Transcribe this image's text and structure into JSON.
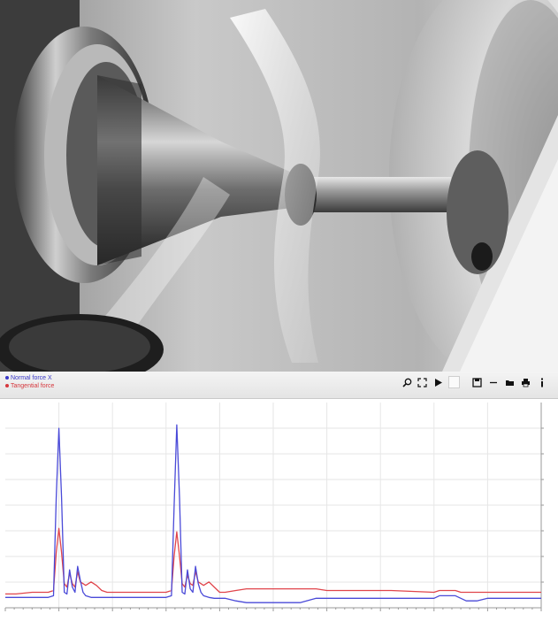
{
  "legend": {
    "normal_force": "Normal force X",
    "tangential_force": "Tangential force"
  },
  "toolbar": {
    "tools": [
      "zoom-icon",
      "fit-icon",
      "play-icon",
      "blank-icon",
      "save-icon",
      "minus-icon",
      "open-folder-icon",
      "print-icon",
      "info-icon"
    ]
  },
  "colors": {
    "normal_force": "#4a4ad8",
    "tangential_force": "#e0454b",
    "toolbar_bg": "#eaeaea",
    "grid": "#e6e6e6"
  },
  "chart_data": {
    "type": "line",
    "title": "",
    "grid": true,
    "legend_position": "top-left",
    "x": [
      0,
      0.02,
      0.05,
      0.08,
      0.09,
      0.095,
      0.1,
      0.105,
      0.11,
      0.115,
      0.12,
      0.125,
      0.13,
      0.135,
      0.14,
      0.145,
      0.15,
      0.16,
      0.17,
      0.18,
      0.19,
      0.2,
      0.25,
      0.3,
      0.31,
      0.315,
      0.32,
      0.325,
      0.33,
      0.335,
      0.34,
      0.345,
      0.35,
      0.355,
      0.36,
      0.365,
      0.37,
      0.38,
      0.39,
      0.4,
      0.41,
      0.43,
      0.45,
      0.47,
      0.5,
      0.55,
      0.58,
      0.6,
      0.65,
      0.7,
      0.72,
      0.8,
      0.81,
      0.84,
      0.85,
      0.86,
      0.88,
      0.9,
      0.95,
      1.0
    ],
    "series": [
      {
        "name": "Normal force X",
        "values": [
          2,
          2,
          2,
          2,
          3,
          60,
          100,
          60,
          5,
          4,
          18,
          8,
          5,
          20,
          12,
          5,
          3,
          2,
          2,
          2,
          2,
          2,
          2,
          2,
          3,
          55,
          102,
          60,
          5,
          4,
          18,
          7,
          5,
          20,
          10,
          5,
          3,
          2,
          1.5,
          1.5,
          1.5,
          0,
          -1,
          -1,
          -1,
          -1,
          1.5,
          1.5,
          1.5,
          1.5,
          1.5,
          1.5,
          3,
          3,
          1.5,
          0,
          0,
          1.5,
          1.5,
          1.5
        ]
      },
      {
        "name": "Tangential force",
        "values": [
          4,
          4,
          5,
          5,
          6,
          28,
          42,
          28,
          10,
          8,
          16,
          10,
          8,
          17,
          11,
          10,
          9,
          11,
          9,
          6,
          5,
          5,
          5,
          5,
          6,
          26,
          40,
          26,
          10,
          8,
          15,
          10,
          9,
          17,
          11,
          10,
          9,
          11,
          8,
          5,
          5,
          6,
          7,
          7,
          7,
          7,
          7,
          6,
          6,
          6,
          6,
          5,
          6,
          6,
          5,
          5,
          5,
          5,
          5,
          5
        ]
      }
    ],
    "ylim": [
      -4,
      115
    ],
    "xlim": [
      0,
      1
    ]
  }
}
